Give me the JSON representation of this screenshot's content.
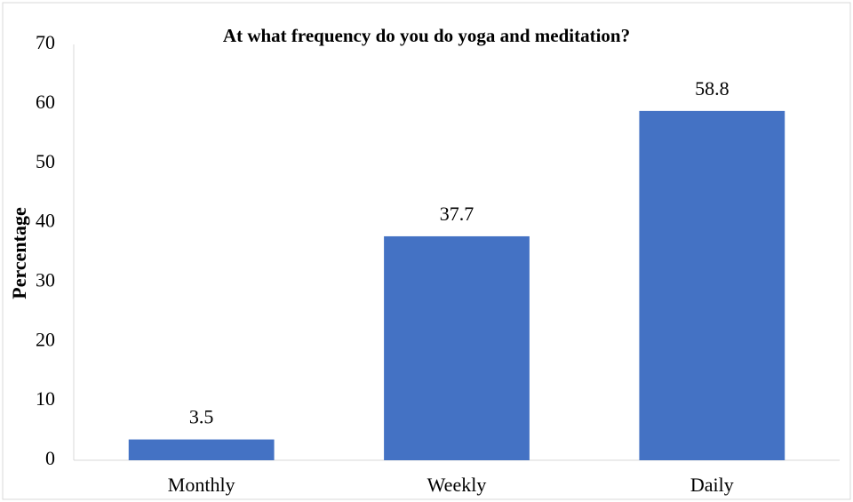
{
  "chart_data": {
    "type": "bar",
    "title": "At what frequency do you do yoga and meditation?",
    "y_label": "Percentage",
    "categories": [
      "Monthly",
      "Weekly",
      "Daily"
    ],
    "values": [
      3.5,
      37.7,
      58.8
    ],
    "color": "#4472c4",
    "ylim": [
      0,
      70
    ],
    "yticks": [
      0,
      10,
      20,
      30,
      40,
      50,
      60,
      70
    ],
    "grid": false
  }
}
